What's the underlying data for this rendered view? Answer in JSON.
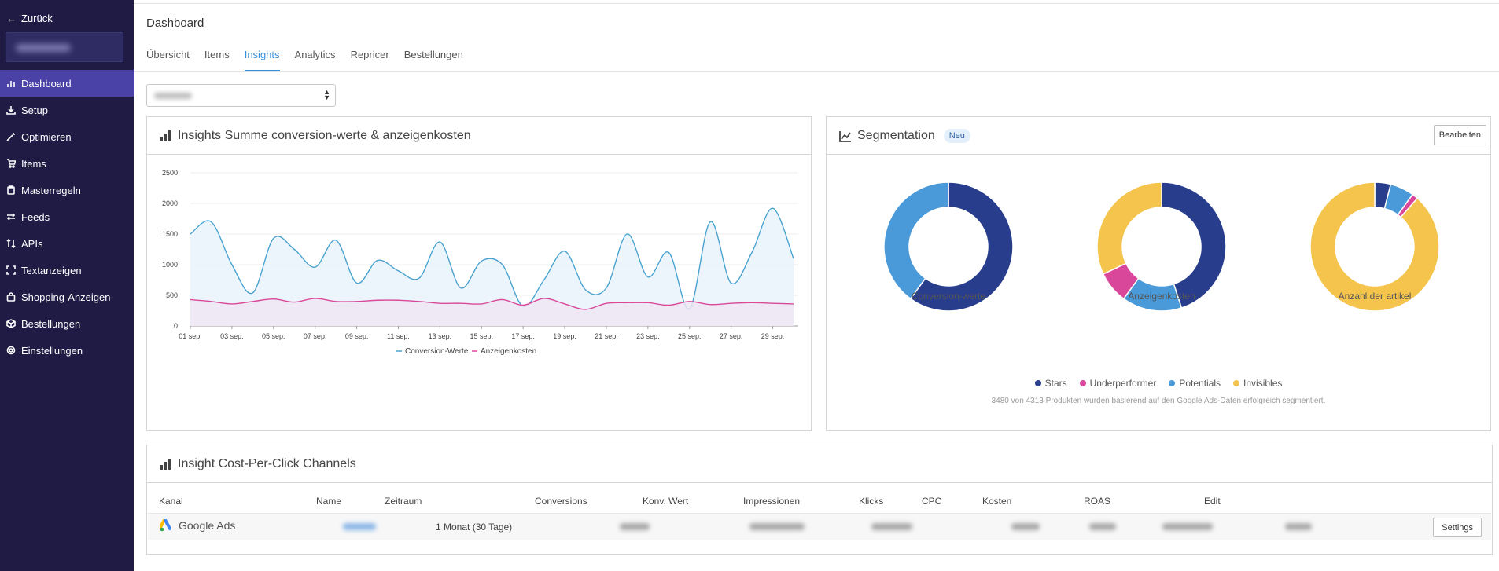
{
  "sidebar": {
    "back_label": "Zurück",
    "items": [
      {
        "label": "Dashboard",
        "icon": "bar-chart-icon",
        "active": true
      },
      {
        "label": "Setup",
        "icon": "download-icon"
      },
      {
        "label": "Optimieren",
        "icon": "magic-wand-icon"
      },
      {
        "label": "Items",
        "icon": "cart-icon"
      },
      {
        "label": "Masterregeln",
        "icon": "clipboard-icon"
      },
      {
        "label": "Feeds",
        "icon": "exchange-icon"
      },
      {
        "label": "APIs",
        "icon": "sort-arrows-icon"
      },
      {
        "label": "Textanzeigen",
        "icon": "frame-icon"
      },
      {
        "label": "Shopping-Anzeigen",
        "icon": "shopping-bag-icon"
      },
      {
        "label": "Bestellungen",
        "icon": "box-icon"
      },
      {
        "label": "Einstellungen",
        "icon": "gear-icon"
      }
    ]
  },
  "header": {
    "title": "Dashboard",
    "tabs": [
      {
        "label": "Übersicht"
      },
      {
        "label": "Items"
      },
      {
        "label": "Insights",
        "active": true
      },
      {
        "label": "Analytics"
      },
      {
        "label": "Repricer"
      },
      {
        "label": "Bestellungen"
      }
    ]
  },
  "insights_panel": {
    "title": "Insights Summe conversion-werte & anzeigenkosten"
  },
  "segmentation_panel": {
    "title": "Segmentation",
    "badge": "Neu",
    "edit_label": "Bearbeiten",
    "note": "3480 von 4313 Produkten wurden basierend auf den Google Ads-Daten erfolgreich segmentiert.",
    "legend": [
      {
        "name": "Stars",
        "color": "#283d8c"
      },
      {
        "name": "Underperformer",
        "color": "#d9479a"
      },
      {
        "name": "Potentials",
        "color": "#4a9ad9"
      },
      {
        "name": "Invisibles",
        "color": "#f4c44c"
      }
    ]
  },
  "cpc_panel": {
    "title": "Insight Cost-Per-Click Channels",
    "columns": [
      "Kanal",
      "Name",
      "Zeitraum",
      "Conversions",
      "Konv. Wert",
      "Impressionen",
      "Klicks",
      "CPC",
      "Kosten",
      "ROAS",
      "Edit"
    ],
    "row": {
      "channel": "Google Ads",
      "period": "1 Monat (30 Tage)",
      "settings_label": "Settings"
    }
  },
  "chart_data": [
    {
      "type": "area",
      "title": "",
      "xlabel": "",
      "ylabel": "",
      "ylim": [
        0,
        2500
      ],
      "y_ticks": [
        0,
        500,
        1000,
        1500,
        2000,
        2500
      ],
      "grid": true,
      "legend_position": "bottom",
      "x_tick_labels": [
        "01 sep.",
        "03 sep.",
        "05 sep.",
        "07 sep.",
        "09 sep.",
        "11 sep.",
        "13 sep.",
        "15 sep.",
        "17 sep.",
        "19 sep.",
        "21 sep.",
        "23 sep.",
        "25 sep.",
        "27 sep.",
        "29 sep."
      ],
      "x": [
        "01 sep.",
        "02 sep.",
        "03 sep.",
        "04 sep.",
        "05 sep.",
        "06 sep.",
        "07 sep.",
        "08 sep.",
        "09 sep.",
        "10 sep.",
        "11 sep.",
        "12 sep.",
        "13 sep.",
        "14 sep.",
        "15 sep.",
        "16 sep.",
        "17 sep.",
        "18 sep.",
        "19 sep.",
        "20 sep.",
        "21 sep.",
        "22 sep.",
        "23 sep.",
        "24 sep.",
        "25 sep.",
        "26 sep.",
        "27 sep.",
        "28 sep.",
        "29 sep.",
        "30 sep."
      ],
      "series": [
        {
          "name": "Conversion-Werte",
          "color": "#4aa3cf",
          "fill": "#e9f3fb",
          "values": [
            1500,
            1700,
            1000,
            540,
            1430,
            1250,
            960,
            1400,
            700,
            1070,
            900,
            780,
            1370,
            620,
            1060,
            1000,
            320,
            750,
            1220,
            590,
            620,
            1500,
            800,
            1200,
            280,
            1700,
            700,
            1200,
            1920,
            1100
          ]
        },
        {
          "name": "Anzeigenkosten",
          "color": "#d9489a",
          "fill": "#efe6f3",
          "values": [
            430,
            400,
            360,
            400,
            440,
            390,
            450,
            400,
            400,
            420,
            420,
            400,
            370,
            370,
            360,
            430,
            340,
            450,
            360,
            270,
            370,
            380,
            380,
            340,
            400,
            350,
            370,
            380,
            370,
            360
          ]
        }
      ]
    },
    {
      "type": "pie",
      "title": "Conversion-werte",
      "series": [
        {
          "name": "Stars",
          "value": 60,
          "color": "#283d8c"
        },
        {
          "name": "Underperformer",
          "value": 0,
          "color": "#d9479a"
        },
        {
          "name": "Potentials",
          "value": 40,
          "color": "#4a9ad9"
        },
        {
          "name": "Invisibles",
          "value": 0,
          "color": "#f4c44c"
        }
      ]
    },
    {
      "type": "pie",
      "title": "Anzeigenkosten",
      "series": [
        {
          "name": "Stars",
          "value": 45,
          "color": "#283d8c"
        },
        {
          "name": "Potentials",
          "value": 15,
          "color": "#4a9ad9"
        },
        {
          "name": "Underperformer",
          "value": 8,
          "color": "#d9479a"
        },
        {
          "name": "Invisibles",
          "value": 32,
          "color": "#f4c44c"
        }
      ]
    },
    {
      "type": "pie",
      "title": "Anzahl der artikel",
      "series": [
        {
          "name": "Stars",
          "value": 4,
          "color": "#283d8c"
        },
        {
          "name": "Potentials",
          "value": 6,
          "color": "#4a9ad9"
        },
        {
          "name": "Underperformer",
          "value": 1.5,
          "color": "#d9479a"
        },
        {
          "name": "Invisibles",
          "value": 88.5,
          "color": "#f4c44c"
        }
      ]
    }
  ]
}
